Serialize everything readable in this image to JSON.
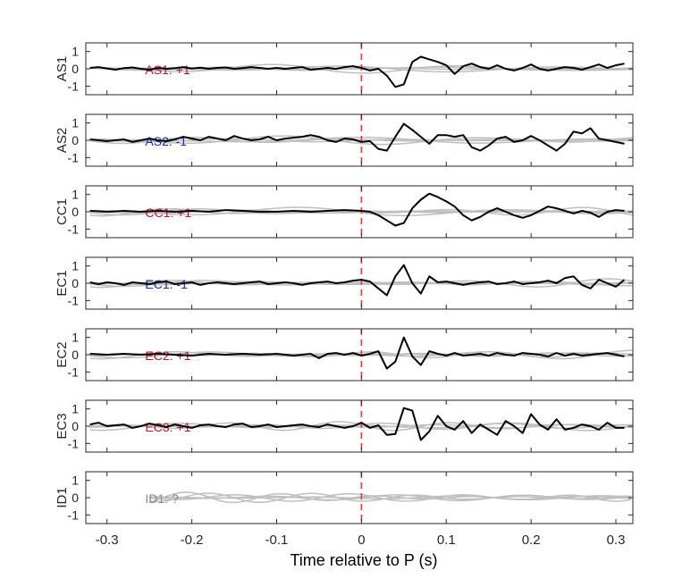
{
  "chart_data": {
    "type": "line",
    "xlabel": "Time relative to P (s)",
    "xlim": [
      -0.325,
      0.32
    ],
    "ylim": [
      -1.5,
      1.5
    ],
    "xticks": [
      -0.3,
      -0.2,
      -0.1,
      0,
      0.1,
      0.2,
      0.3
    ],
    "xtick_labels": [
      "-0.3",
      "-0.2",
      "-0.1",
      "0",
      "0.1",
      "0.2",
      "0.3"
    ],
    "yticks": [
      1,
      0,
      -1
    ],
    "ytick_labels": [
      "1",
      "0",
      "-1"
    ],
    "marker_x": 0,
    "colors": {
      "trace": "#000000",
      "grey": "#bfbfbf",
      "marker": "#e8392f",
      "red": "#b2182b",
      "blue": "#1a2aa8",
      "unknown": "#8c8c8c"
    },
    "panels": [
      {
        "name": "AS1",
        "ylabel": "AS1",
        "label": "AS1: +1",
        "label_color": "#b2182b",
        "x": [
          -0.32,
          -0.31,
          -0.3,
          -0.29,
          -0.28,
          -0.27,
          -0.26,
          -0.25,
          -0.24,
          -0.23,
          -0.22,
          -0.21,
          -0.2,
          -0.19,
          -0.18,
          -0.17,
          -0.16,
          -0.15,
          -0.14,
          -0.13,
          -0.12,
          -0.11,
          -0.1,
          -0.09,
          -0.08,
          -0.07,
          -0.06,
          -0.05,
          -0.04,
          -0.03,
          -0.02,
          -0.01,
          0.0,
          0.01,
          0.02,
          0.03,
          0.04,
          0.05,
          0.06,
          0.07,
          0.08,
          0.09,
          0.1,
          0.11,
          0.12,
          0.13,
          0.14,
          0.15,
          0.16,
          0.17,
          0.18,
          0.19,
          0.2,
          0.21,
          0.22,
          0.23,
          0.24,
          0.25,
          0.26,
          0.27,
          0.28,
          0.29,
          0.3,
          0.31
        ],
        "y": [
          0.05,
          0.1,
          0.02,
          -0.05,
          0.04,
          0.08,
          0.0,
          -0.05,
          0.05,
          0.0,
          0.04,
          0.1,
          0.02,
          0.06,
          0.0,
          0.05,
          0.08,
          0.0,
          0.04,
          0.1,
          0.05,
          0.0,
          0.05,
          0.0,
          0.05,
          0.1,
          -0.05,
          0.0,
          0.05,
          0.0,
          0.1,
          0.15,
          0.05,
          -0.1,
          0.0,
          -0.4,
          -1.05,
          -0.9,
          0.4,
          0.7,
          0.55,
          0.4,
          0.2,
          -0.3,
          0.15,
          0.3,
          0.1,
          0.0,
          0.2,
          0.0,
          -0.1,
          0.05,
          0.25,
          0.0,
          -0.1,
          0.0,
          0.1,
          0.05,
          -0.05,
          0.1,
          0.25,
          0.05,
          0.2,
          0.3
        ]
      },
      {
        "name": "AS2",
        "ylabel": "AS2",
        "label": "AS2: -1",
        "label_color": "#1a2aa8",
        "x": [
          -0.32,
          -0.31,
          -0.3,
          -0.29,
          -0.28,
          -0.27,
          -0.26,
          -0.25,
          -0.24,
          -0.23,
          -0.22,
          -0.21,
          -0.2,
          -0.19,
          -0.18,
          -0.17,
          -0.16,
          -0.15,
          -0.14,
          -0.13,
          -0.12,
          -0.11,
          -0.1,
          -0.09,
          -0.08,
          -0.07,
          -0.06,
          -0.05,
          -0.04,
          -0.03,
          -0.02,
          -0.01,
          0.0,
          0.01,
          0.02,
          0.03,
          0.04,
          0.05,
          0.06,
          0.07,
          0.08,
          0.09,
          0.1,
          0.11,
          0.12,
          0.13,
          0.14,
          0.15,
          0.16,
          0.17,
          0.18,
          0.19,
          0.2,
          0.21,
          0.22,
          0.23,
          0.24,
          0.25,
          0.26,
          0.27,
          0.28,
          0.29,
          0.3,
          0.31
        ],
        "y": [
          0.05,
          0.0,
          -0.05,
          0.0,
          0.05,
          -0.1,
          0.0,
          0.1,
          0.0,
          -0.05,
          0.05,
          0.2,
          0.1,
          0.0,
          0.2,
          0.1,
          0.0,
          0.25,
          0.1,
          0.0,
          0.05,
          0.2,
          0.0,
          0.1,
          0.15,
          0.2,
          0.3,
          0.2,
          0.0,
          -0.1,
          0.1,
          0.05,
          -0.1,
          -0.05,
          -0.5,
          -0.6,
          0.2,
          0.95,
          0.6,
          0.2,
          -0.2,
          0.3,
          0.3,
          0.2,
          0.3,
          -0.4,
          -0.6,
          -0.3,
          0.1,
          0.2,
          -0.1,
          0.0,
          0.25,
          0.0,
          -0.3,
          -0.6,
          -0.2,
          0.5,
          0.4,
          0.7,
          0.1,
          0.0,
          -0.1,
          -0.2
        ]
      },
      {
        "name": "CC1",
        "ylabel": "CC1",
        "label": "CC1: +1",
        "label_color": "#b2182b",
        "x": [
          -0.32,
          -0.3,
          -0.28,
          -0.26,
          -0.24,
          -0.22,
          -0.2,
          -0.18,
          -0.16,
          -0.14,
          -0.12,
          -0.1,
          -0.08,
          -0.06,
          -0.04,
          -0.02,
          0.0,
          0.01,
          0.02,
          0.03,
          0.04,
          0.05,
          0.06,
          0.07,
          0.08,
          0.09,
          0.1,
          0.11,
          0.12,
          0.13,
          0.14,
          0.15,
          0.16,
          0.17,
          0.18,
          0.19,
          0.2,
          0.21,
          0.22,
          0.23,
          0.24,
          0.25,
          0.26,
          0.27,
          0.28,
          0.29,
          0.3,
          0.31
        ],
        "y": [
          0.05,
          0.0,
          0.05,
          0.0,
          0.05,
          0.0,
          0.05,
          0.0,
          0.1,
          0.05,
          0.0,
          0.0,
          0.05,
          0.0,
          0.05,
          0.1,
          0.05,
          0.0,
          -0.2,
          -0.5,
          -0.8,
          -0.65,
          0.2,
          0.7,
          1.05,
          0.85,
          0.6,
          0.3,
          -0.2,
          -0.5,
          -0.3,
          0.0,
          0.2,
          0.0,
          -0.2,
          -0.35,
          -0.2,
          0.05,
          0.3,
          0.2,
          0.05,
          -0.1,
          0.05,
          -0.05,
          -0.3,
          0.0,
          0.1,
          0.05
        ]
      },
      {
        "name": "EC1",
        "ylabel": "EC1",
        "label": "EC1: -1",
        "label_color": "#1a2aa8",
        "x": [
          -0.32,
          -0.31,
          -0.3,
          -0.29,
          -0.28,
          -0.27,
          -0.26,
          -0.25,
          -0.24,
          -0.23,
          -0.22,
          -0.21,
          -0.2,
          -0.19,
          -0.18,
          -0.17,
          -0.16,
          -0.15,
          -0.14,
          -0.13,
          -0.12,
          -0.11,
          -0.1,
          -0.09,
          -0.08,
          -0.07,
          -0.06,
          -0.05,
          -0.04,
          -0.03,
          -0.02,
          -0.01,
          0.0,
          0.01,
          0.02,
          0.03,
          0.04,
          0.05,
          0.06,
          0.07,
          0.08,
          0.09,
          0.1,
          0.11,
          0.12,
          0.13,
          0.14,
          0.15,
          0.16,
          0.17,
          0.18,
          0.19,
          0.2,
          0.21,
          0.22,
          0.23,
          0.24,
          0.25,
          0.26,
          0.27,
          0.28,
          0.29,
          0.3,
          0.31
        ],
        "y": [
          0.05,
          -0.05,
          0.05,
          0.0,
          -0.1,
          0.05,
          0.0,
          -0.05,
          0.05,
          0.1,
          -0.05,
          0.0,
          0.05,
          -0.1,
          0.0,
          0.05,
          0.0,
          -0.05,
          0.0,
          0.05,
          0.1,
          -0.05,
          0.0,
          0.05,
          0.0,
          -0.1,
          0.0,
          0.05,
          0.1,
          0.0,
          0.05,
          0.15,
          0.2,
          0.1,
          -0.3,
          -0.7,
          0.4,
          1.05,
          0.0,
          -0.6,
          0.4,
          0.05,
          0.1,
          0.0,
          -0.1,
          0.0,
          0.05,
          0.1,
          -0.05,
          0.0,
          0.1,
          -0.05,
          0.0,
          0.05,
          0.15,
          0.0,
          0.3,
          0.4,
          -0.1,
          -0.3,
          0.2,
          0.0,
          -0.2,
          0.2
        ]
      },
      {
        "name": "EC2",
        "ylabel": "EC2",
        "label": "EC2: +1",
        "label_color": "#b2182b",
        "x": [
          -0.32,
          -0.3,
          -0.28,
          -0.26,
          -0.24,
          -0.22,
          -0.2,
          -0.18,
          -0.16,
          -0.14,
          -0.12,
          -0.1,
          -0.08,
          -0.06,
          -0.05,
          -0.04,
          -0.03,
          -0.02,
          -0.01,
          0.0,
          0.01,
          0.02,
          0.03,
          0.04,
          0.05,
          0.06,
          0.07,
          0.08,
          0.09,
          0.1,
          0.11,
          0.12,
          0.13,
          0.14,
          0.15,
          0.16,
          0.17,
          0.18,
          0.19,
          0.2,
          0.21,
          0.22,
          0.23,
          0.24,
          0.25,
          0.26,
          0.27,
          0.28,
          0.29,
          0.3,
          0.31
        ],
        "y": [
          0.05,
          0.0,
          0.05,
          0.0,
          0.05,
          0.0,
          -0.05,
          0.05,
          0.0,
          0.05,
          0.0,
          0.05,
          -0.05,
          0.05,
          -0.2,
          0.05,
          0.1,
          0.0,
          0.1,
          -0.05,
          0.05,
          0.2,
          -0.8,
          -0.4,
          1.0,
          -0.1,
          -0.6,
          0.2,
          0.05,
          -0.05,
          0.1,
          -0.05,
          0.0,
          0.05,
          -0.05,
          0.1,
          0.0,
          -0.05,
          0.1,
          0.05,
          0.0,
          -0.1,
          0.1,
          -0.05,
          0.05,
          -0.05,
          0.0,
          0.05,
          0.1,
          0.0,
          -0.1
        ]
      },
      {
        "name": "EC3",
        "ylabel": "EC3",
        "label": "EC3: +1",
        "label_color": "#b2182b",
        "x": [
          -0.32,
          -0.31,
          -0.3,
          -0.29,
          -0.28,
          -0.27,
          -0.26,
          -0.25,
          -0.24,
          -0.23,
          -0.22,
          -0.21,
          -0.2,
          -0.19,
          -0.18,
          -0.17,
          -0.16,
          -0.15,
          -0.14,
          -0.13,
          -0.12,
          -0.11,
          -0.1,
          -0.09,
          -0.08,
          -0.07,
          -0.06,
          -0.05,
          -0.04,
          -0.03,
          -0.02,
          -0.01,
          0.0,
          0.01,
          0.02,
          0.03,
          0.04,
          0.05,
          0.06,
          0.07,
          0.08,
          0.09,
          0.1,
          0.11,
          0.12,
          0.13,
          0.14,
          0.15,
          0.16,
          0.17,
          0.18,
          0.19,
          0.2,
          0.21,
          0.22,
          0.23,
          0.24,
          0.25,
          0.26,
          0.27,
          0.28,
          0.29,
          0.3,
          0.31
        ],
        "y": [
          0.1,
          0.2,
          0.0,
          0.05,
          0.1,
          -0.1,
          0.0,
          0.15,
          0.05,
          -0.05,
          0.1,
          0.0,
          -0.1,
          0.05,
          0.1,
          0.0,
          -0.05,
          0.1,
          0.15,
          -0.05,
          0.0,
          0.1,
          -0.05,
          0.0,
          0.05,
          0.1,
          0.0,
          -0.05,
          0.1,
          0.0,
          -0.1,
          0.0,
          0.2,
          -0.1,
          0.05,
          -0.5,
          -0.45,
          1.05,
          0.9,
          -0.8,
          -0.3,
          0.6,
          0.0,
          -0.2,
          0.3,
          -0.4,
          0.1,
          -0.2,
          -0.5,
          0.3,
          0.0,
          -0.4,
          0.7,
          0.1,
          -0.2,
          0.4,
          -0.2,
          -0.1,
          0.1,
          0.0,
          -0.2,
          0.2,
          -0.1,
          -0.1
        ]
      },
      {
        "name": "ID1",
        "ylabel": "ID1",
        "label": "ID1: ?",
        "label_color": "#8c8c8c",
        "x": [],
        "y": []
      }
    ]
  }
}
